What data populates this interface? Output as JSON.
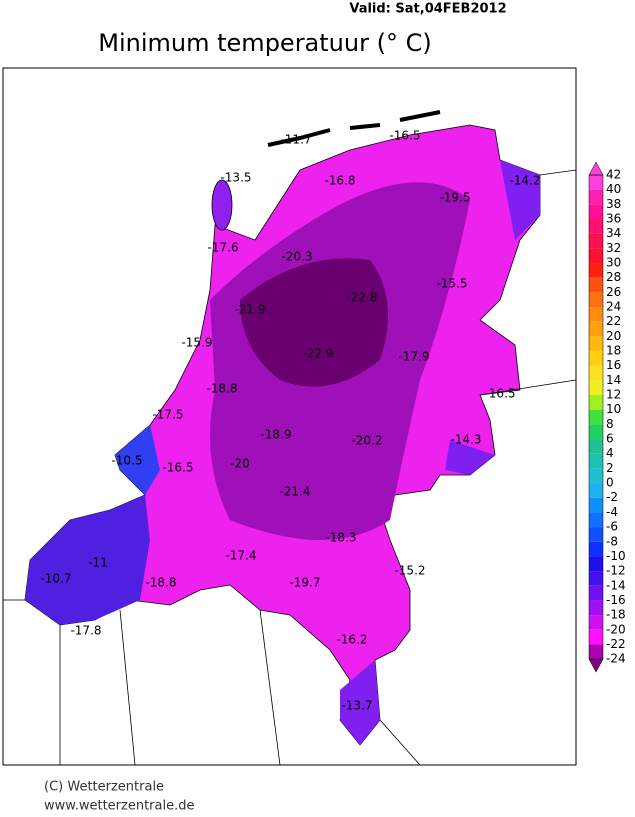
{
  "header": {
    "valid": "Valid:  Sat,04FEB2012",
    "title": "Minimum temperatuur (° C)"
  },
  "stations": [
    -11.7,
    -16.5,
    -13.5,
    -16.8,
    -19.5,
    -14.2,
    -17.6,
    -20.3,
    -15.5,
    -21.9,
    -22.8,
    -15.9,
    -22.9,
    -17.9,
    -18.8,
    -16.5,
    -17.5,
    -18.9,
    -20.2,
    -14.3,
    -10.5,
    -16.5,
    -20.0,
    -21.4,
    -18.3,
    -11.0,
    -17.4,
    -15.2,
    -10.7,
    -18.8,
    -19.7,
    -17.8,
    -16.2,
    -13.7
  ],
  "colorbar": {
    "ticks": [
      42,
      40,
      38,
      36,
      34,
      32,
      30,
      28,
      26,
      24,
      22,
      20,
      18,
      16,
      14,
      12,
      10,
      8,
      6,
      4,
      2,
      0,
      -2,
      -4,
      -6,
      -8,
      -10,
      -12,
      -14,
      -16,
      -18,
      -20,
      -22,
      -24
    ],
    "colors": [
      "#ff40e0",
      "#ff20b0",
      "#ff1090",
      "#ff1070",
      "#ff1050",
      "#ff1030",
      "#ff2010",
      "#ff5010",
      "#ff7010",
      "#ff8c10",
      "#ffa010",
      "#ffb810",
      "#ffd010",
      "#ffe020",
      "#f0f020",
      "#a0f020",
      "#40e040",
      "#20d060",
      "#20c090",
      "#20c0b0",
      "#20c0d0",
      "#20b0f0",
      "#1090ff",
      "#1070ff",
      "#1050ff",
      "#1030ff",
      "#2010f0",
      "#4010f0",
      "#7010f0",
      "#a010f0",
      "#d010f0",
      "#ff10ff",
      "#b000b0",
      "#800080"
    ]
  },
  "footer": {
    "copyright": "(C) Wetterzentrale",
    "url": "www.wetterzentrale.de"
  }
}
